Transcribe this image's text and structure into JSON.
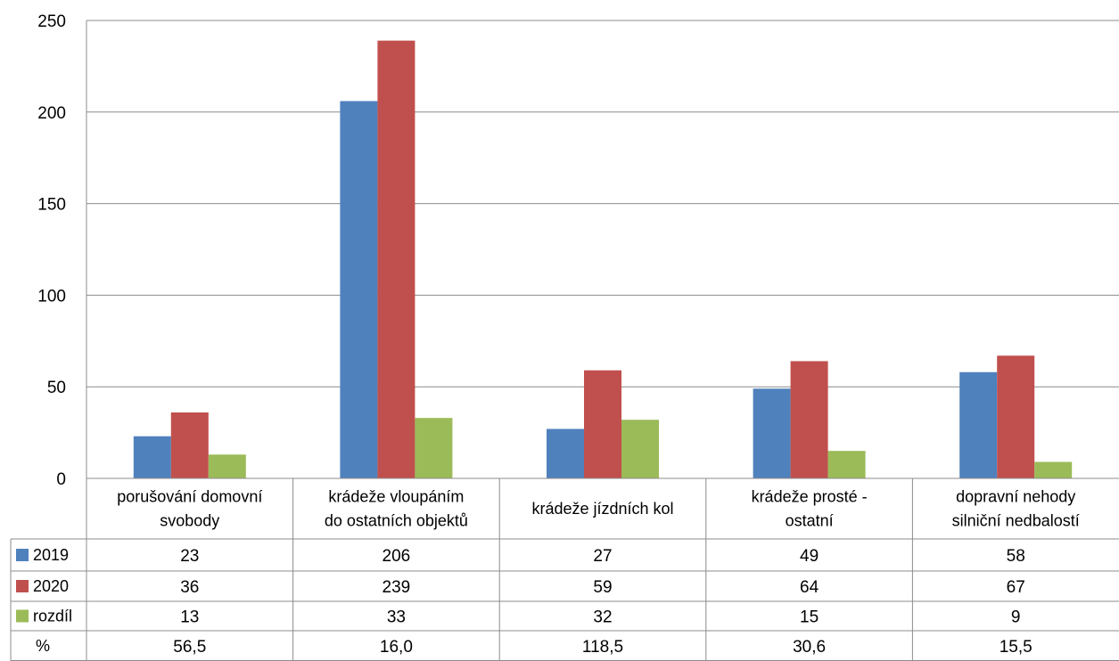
{
  "chart_data": {
    "type": "bar",
    "title": "",
    "xlabel": "",
    "ylabel": "",
    "ylim": [
      0,
      250
    ],
    "yticks": [
      "0",
      "50",
      "100",
      "150",
      "200",
      "250"
    ],
    "ytick_values": [
      0,
      50,
      100,
      150,
      200,
      250
    ],
    "grid": true,
    "legend": "data-table",
    "categories": [
      [
        "porušování domovní",
        "svobody"
      ],
      [
        "krádeže vloupáním",
        "do ostatních objektů"
      ],
      [
        "krádeže jízdních kol"
      ],
      [
        "krádeže prosté -",
        "ostatní"
      ],
      [
        "dopravní nehody",
        "silniční nedbalostí"
      ]
    ],
    "series": [
      {
        "name": "2019",
        "color": "#4F81BD",
        "values": [
          23,
          206,
          27,
          49,
          58
        ],
        "labels": [
          "23",
          "206",
          "27",
          "49",
          "58"
        ]
      },
      {
        "name": "2020",
        "color": "#C0504D",
        "values": [
          36,
          239,
          59,
          64,
          67
        ],
        "labels": [
          "36",
          "239",
          "59",
          "64",
          "67"
        ]
      },
      {
        "name": "rozdíl",
        "color": "#9BBB59",
        "values": [
          13,
          33,
          32,
          15,
          9
        ],
        "labels": [
          "13",
          "33",
          "32",
          "15",
          "9"
        ]
      }
    ],
    "extra_rows": [
      {
        "name": "%",
        "labels": [
          "56,5",
          "16,0",
          "118,5",
          "30,6",
          "15,5"
        ]
      }
    ]
  }
}
